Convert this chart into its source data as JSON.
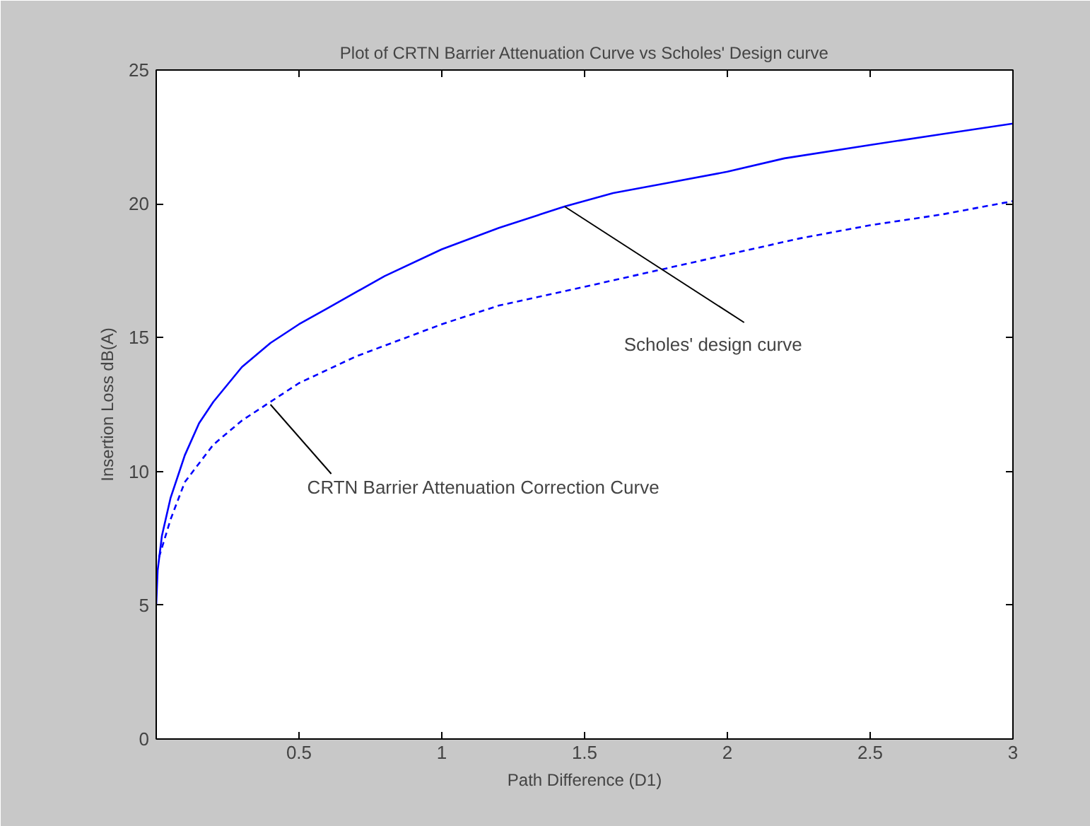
{
  "chart_data": {
    "type": "line",
    "title": "Plot of CRTN Barrier Attenuation Curve vs Scholes' Design curve",
    "xlabel": "Path Difference (D1)",
    "ylabel": "Insertion Loss dB(A)",
    "xlim": [
      0,
      3
    ],
    "ylim": [
      0,
      25
    ],
    "xticks": [
      0.5,
      1,
      1.5,
      2,
      2.5,
      3
    ],
    "yticks": [
      0,
      5,
      10,
      15,
      20,
      25
    ],
    "grid": false,
    "series": [
      {
        "color": "#0000ff",
        "line_style": "solid",
        "x": [
          0,
          0.005,
          0.02,
          0.05,
          0.1,
          0.15,
          0.2,
          0.3,
          0.4,
          0.5,
          0.6,
          0.8,
          1.0,
          1.2,
          1.43,
          1.6,
          1.8,
          2.0,
          2.2,
          2.5,
          2.75,
          3.0
        ],
        "values": [
          5.0,
          6.3,
          7.6,
          9.0,
          10.6,
          11.8,
          12.6,
          13.9,
          14.8,
          15.5,
          16.1,
          17.3,
          18.3,
          19.1,
          19.9,
          20.4,
          20.8,
          21.2,
          21.7,
          22.2,
          22.6,
          23.0
        ]
      },
      {
        "color": "#0000ff",
        "line_style": "dashed",
        "x": [
          0.01,
          0.05,
          0.1,
          0.2,
          0.3,
          0.4,
          0.5,
          0.7,
          1.0,
          1.2,
          1.5,
          1.75,
          2.0,
          2.25,
          2.5,
          2.75,
          3.0
        ],
        "values": [
          6.8,
          8.2,
          9.6,
          11.0,
          11.9,
          12.6,
          13.3,
          14.3,
          15.5,
          16.2,
          16.9,
          17.5,
          18.1,
          18.7,
          19.2,
          19.6,
          20.1
        ]
      }
    ],
    "annotations": [
      {
        "text": "Scholes' design curve",
        "x": 1.43,
        "y": 19.9
      },
      {
        "text": "CRTN Barrier Attenuation Correction Curve",
        "x": 0.4,
        "y": 12.5
      }
    ]
  }
}
